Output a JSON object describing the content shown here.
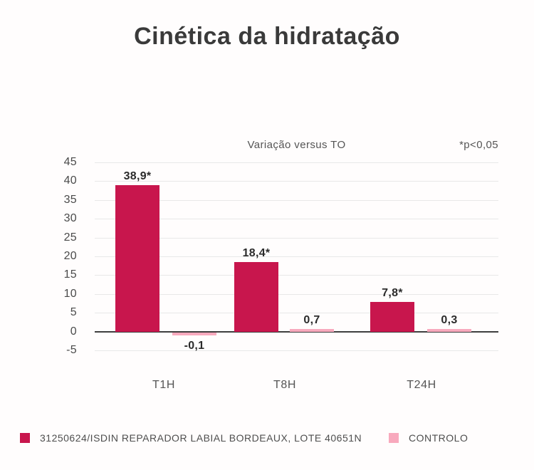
{
  "title": "Cinética da hidratação",
  "subtitle": "Variação versus TO",
  "significance_note": "*p<0,05",
  "colors": {
    "product_bar": "#C8164D",
    "control_bar": "#F8A9BD",
    "title_text": "#3A3A3A",
    "axis_text": "#4A4A4A"
  },
  "chart_data": {
    "type": "bar",
    "title": "Cinética da hidratação",
    "subtitle": "Variação versus TO",
    "note": "*p<0,05",
    "categories": [
      "T1H",
      "T8H",
      "T24H"
    ],
    "series": [
      {
        "name": "31250624/ISDIN REPARADOR LABIAL BORDEAUX,  LOTE 40651N",
        "color": "#C8164D",
        "values": [
          38.9,
          18.4,
          7.8
        ],
        "labels": [
          "38,9*",
          "18,4*",
          "7,8*"
        ]
      },
      {
        "name": "CONTROLO",
        "color": "#F8A9BD",
        "values": [
          -0.1,
          0.7,
          0.3
        ],
        "labels": [
          "-0,1",
          "0,7",
          "0,3"
        ]
      }
    ],
    "xlabel": "",
    "ylabel": "",
    "ylim": [
      -5,
      45
    ],
    "ytick_step": 5,
    "grid": true,
    "legend_position": "bottom"
  }
}
